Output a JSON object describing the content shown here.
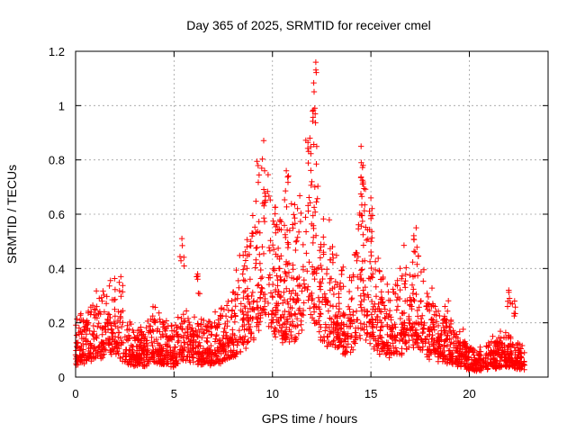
{
  "chart_data": {
    "type": "scatter",
    "title": "Day 365 of 2025, SRMTID for receiver cmel",
    "xlabel": "GPS time / hours",
    "ylabel": "SRMTID / TECUs",
    "xlim": [
      0,
      24
    ],
    "ylim": [
      0,
      1.2
    ],
    "x_ticks": [
      0,
      5,
      10,
      15,
      20
    ],
    "x_tick_labels": [
      "0",
      "5",
      "10",
      "15",
      "20"
    ],
    "y_ticks": [
      0,
      0.2,
      0.4,
      0.6,
      0.8,
      1.0,
      1.2
    ],
    "y_tick_labels": [
      "0",
      "0.2",
      "0.4",
      "0.6",
      "0.8",
      "1",
      "1.2"
    ],
    "grid": true,
    "marker": "plus",
    "color": "#ff0000",
    "series": [
      {
        "name": "SRMTID",
        "profile": [
          {
            "x": 0.0,
            "y": 0.12
          },
          {
            "x": 0.5,
            "y": 0.14
          },
          {
            "x": 1.0,
            "y": 0.16
          },
          {
            "x": 1.5,
            "y": 0.2
          },
          {
            "x": 2.0,
            "y": 0.2
          },
          {
            "x": 2.5,
            "y": 0.14
          },
          {
            "x": 3.0,
            "y": 0.1
          },
          {
            "x": 3.5,
            "y": 0.11
          },
          {
            "x": 4.0,
            "y": 0.14
          },
          {
            "x": 4.5,
            "y": 0.12
          },
          {
            "x": 5.0,
            "y": 0.1
          },
          {
            "x": 5.5,
            "y": 0.18
          },
          {
            "x": 6.0,
            "y": 0.14
          },
          {
            "x": 6.5,
            "y": 0.12
          },
          {
            "x": 7.0,
            "y": 0.12
          },
          {
            "x": 7.5,
            "y": 0.15
          },
          {
            "x": 8.0,
            "y": 0.2
          },
          {
            "x": 8.5,
            "y": 0.26
          },
          {
            "x": 9.0,
            "y": 0.35
          },
          {
            "x": 9.5,
            "y": 0.52
          },
          {
            "x": 10.0,
            "y": 0.4
          },
          {
            "x": 10.5,
            "y": 0.36
          },
          {
            "x": 11.0,
            "y": 0.34
          },
          {
            "x": 11.5,
            "y": 0.48
          },
          {
            "x": 12.0,
            "y": 0.62
          },
          {
            "x": 12.5,
            "y": 0.34
          },
          {
            "x": 13.0,
            "y": 0.28
          },
          {
            "x": 13.5,
            "y": 0.24
          },
          {
            "x": 14.0,
            "y": 0.22
          },
          {
            "x": 14.5,
            "y": 0.4
          },
          {
            "x": 15.0,
            "y": 0.32
          },
          {
            "x": 15.5,
            "y": 0.22
          },
          {
            "x": 16.0,
            "y": 0.2
          },
          {
            "x": 16.5,
            "y": 0.22
          },
          {
            "x": 17.0,
            "y": 0.28
          },
          {
            "x": 17.5,
            "y": 0.25
          },
          {
            "x": 18.0,
            "y": 0.18
          },
          {
            "x": 18.5,
            "y": 0.14
          },
          {
            "x": 19.0,
            "y": 0.14
          },
          {
            "x": 19.5,
            "y": 0.1
          },
          {
            "x": 20.0,
            "y": 0.07
          },
          {
            "x": 20.5,
            "y": 0.06
          },
          {
            "x": 21.0,
            "y": 0.08
          },
          {
            "x": 21.5,
            "y": 0.09
          },
          {
            "x": 22.0,
            "y": 0.1
          },
          {
            "x": 22.5,
            "y": 0.08
          },
          {
            "x": 22.8,
            "y": 0.06
          }
        ],
        "peaks": [
          {
            "x": 9.6,
            "y": 0.76
          },
          {
            "x": 10.7,
            "y": 0.76
          },
          {
            "x": 12.2,
            "y": 1.16
          },
          {
            "x": 12.15,
            "y": 0.99
          },
          {
            "x": 11.9,
            "y": 0.88
          },
          {
            "x": 14.5,
            "y": 0.85
          },
          {
            "x": 14.6,
            "y": 0.78
          },
          {
            "x": 15.0,
            "y": 0.66
          },
          {
            "x": 17.3,
            "y": 0.55
          },
          {
            "x": 5.4,
            "y": 0.51
          },
          {
            "x": 6.2,
            "y": 0.38
          },
          {
            "x": 2.3,
            "y": 0.37
          },
          {
            "x": 22.0,
            "y": 0.32
          },
          {
            "x": 22.3,
            "y": 0.28
          }
        ]
      }
    ]
  }
}
